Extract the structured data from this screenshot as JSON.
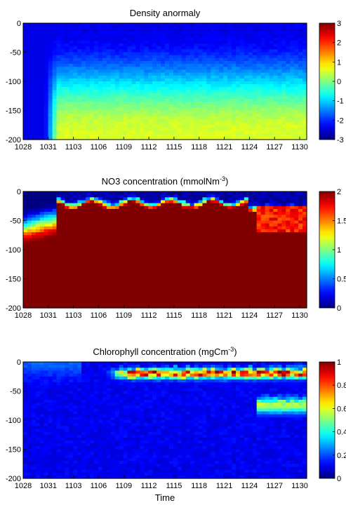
{
  "figure": {
    "xlabel": "Time",
    "x_ticks": [
      "1028",
      "1031",
      "1103",
      "1106",
      "1109",
      "1112",
      "1115",
      "1118",
      "1121",
      "1124",
      "1127",
      "1130"
    ]
  },
  "chart_data": [
    {
      "type": "heatmap",
      "title": "Density anormaly",
      "colormap": "jet",
      "y_ticks": [
        "0",
        "-50",
        "-100",
        "-150",
        "-200"
      ],
      "ylim": [
        -200,
        0
      ],
      "colorbar": {
        "min": -3,
        "max": 3,
        "ticks": [
          "3",
          "2",
          "1",
          "0",
          "-1",
          "-2",
          "-3"
        ]
      },
      "regions": [
        {
          "depth": "0 to -200",
          "period": "1028-1031",
          "approx_value": -2.4
        },
        {
          "depth": "0 to -30",
          "period": "1103-1130",
          "approx_value": -2.0
        },
        {
          "depth": "-30 to -90",
          "period": "1103-1130",
          "approx_value": -1.0
        },
        {
          "depth": "-90 to -150",
          "period": "1103-1130",
          "approx_value": -0.2
        },
        {
          "depth": "-150 to -200",
          "period": "1103-1130",
          "approx_value": 0.4
        }
      ]
    },
    {
      "type": "heatmap",
      "title": "NO3 concentration (mmolNm",
      "title_superscript": "-3",
      "title_suffix": ")",
      "colormap": "jet",
      "y_ticks": [
        "0",
        "-50",
        "-100",
        "-150",
        "-200"
      ],
      "ylim": [
        -200,
        0
      ],
      "colorbar": {
        "min": 0,
        "max": 2,
        "ticks": [
          "2",
          "1.5",
          "1",
          "0.5",
          "0"
        ]
      },
      "regions": [
        {
          "depth": "0 to -60",
          "period": "1028-1031",
          "approx_value": 0.1
        },
        {
          "depth": "-60 to -200",
          "period": "1028-1031",
          "approx_value": 2.0
        },
        {
          "depth": "0 to -15",
          "period": "1103-1130",
          "approx_value": 0.3
        },
        {
          "depth": "-15 to -40",
          "period": "1103-1124",
          "approx_value": 1.7
        },
        {
          "depth": "-40 to -200",
          "period": "1103-1130",
          "approx_value": 2.0
        }
      ]
    },
    {
      "type": "heatmap",
      "title": "Chlorophyll concentration (mgCm",
      "title_superscript": "-3",
      "title_suffix": ")",
      "colormap": "jet",
      "y_ticks": [
        "0",
        "-50",
        "-100",
        "-150",
        "-200"
      ],
      "ylim": [
        -200,
        0
      ],
      "colorbar": {
        "min": 0,
        "max": 1,
        "ticks": [
          "1",
          "0.8",
          "0.6",
          "0.4",
          "0.2",
          "0"
        ]
      },
      "regions": [
        {
          "depth": "0 to -40",
          "period": "1028-1103",
          "approx_value": 0.2
        },
        {
          "depth": "-10 to -30",
          "period": "1109-1130",
          "approx_value": 0.95
        },
        {
          "depth": "-60 to -90",
          "period": "1124-1130",
          "approx_value": 0.6
        },
        {
          "depth": "-40 to -200",
          "period": "1028-1130",
          "approx_value": 0.1
        }
      ]
    }
  ]
}
